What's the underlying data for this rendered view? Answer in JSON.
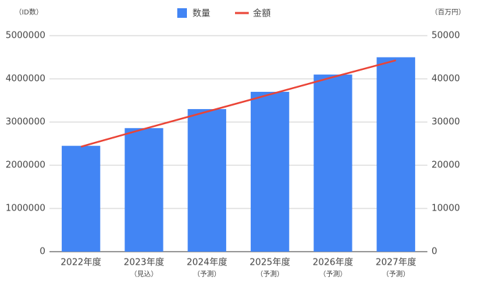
{
  "chart_data": {
    "type": "bar_line",
    "y_label": "（ID数）",
    "y2_label": "（百万円）",
    "categories": [
      "2022年度",
      "2023年度",
      "2024年度",
      "2025年度",
      "2026年度",
      "2027年度"
    ],
    "category_notes": [
      null,
      "（見込）",
      "（予測）",
      "（予測）",
      "（予測）",
      "（予測）"
    ],
    "series": [
      {
        "name": "数量",
        "type": "bar",
        "color": "#4285f4",
        "values": [
          2450000,
          2860000,
          3300000,
          3700000,
          4100000,
          4500000
        ]
      },
      {
        "name": "金額",
        "type": "line",
        "axis": "y2",
        "color": "#ea4335",
        "values": [
          24300,
          28400,
          32400,
          36400,
          40400,
          44300
        ]
      }
    ],
    "ylim": [
      0,
      5000000
    ],
    "yticks": [
      0,
      1000000,
      2000000,
      3000000,
      4000000,
      5000000
    ],
    "y2lim": [
      0,
      50000
    ],
    "y2ticks": [
      0,
      10000,
      20000,
      30000,
      40000,
      50000
    ],
    "grid": true,
    "legend": "top"
  }
}
